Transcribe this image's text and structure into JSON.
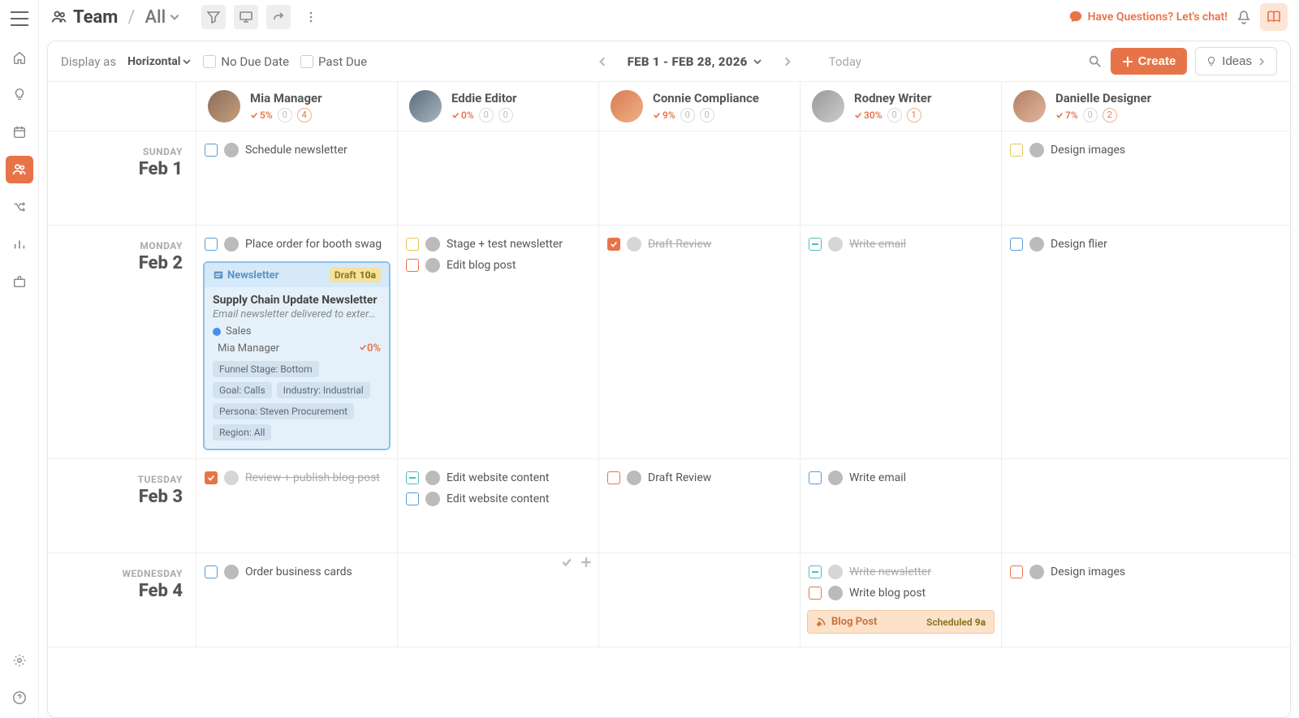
{
  "topbar": {
    "team_label": "Team",
    "view_label": "All",
    "chat_label": "Have Questions? Let's chat!"
  },
  "toolbar": {
    "display_as": "Display as",
    "display_mode": "Horizontal",
    "no_due_date": "No Due Date",
    "past_due": "Past Due",
    "date_range": "FEB 1 - FEB 28, 2026",
    "today": "Today",
    "create_label": "Create",
    "ideas_label": "Ideas"
  },
  "people": [
    {
      "name": "Mia Manager",
      "pct": "5%",
      "c1": "0",
      "c2": "4",
      "c2cls": "orange",
      "avcls": "av-mia"
    },
    {
      "name": "Eddie Editor",
      "pct": "0%",
      "c1": "0",
      "c2": "0",
      "c2cls": "",
      "avcls": "av-eddie"
    },
    {
      "name": "Connie Compliance",
      "pct": "9%",
      "c1": "0",
      "c2": "0",
      "c2cls": "",
      "avcls": "av-connie"
    },
    {
      "name": "Rodney Writer",
      "pct": "30%",
      "c1": "0",
      "c2": "1",
      "c2cls": "orange",
      "avcls": "av-rodney"
    },
    {
      "name": "Danielle Designer",
      "pct": "7%",
      "c1": "0",
      "c2": "2",
      "c2cls": "orange",
      "avcls": "av-dani"
    }
  ],
  "days": [
    {
      "dow": "SUNDAY",
      "date": "Feb 1"
    },
    {
      "dow": "MONDAY",
      "date": "Feb 2"
    },
    {
      "dow": "TUESDAY",
      "date": "Feb 3"
    },
    {
      "dow": "WEDNESDAY",
      "date": "Feb 4"
    }
  ],
  "tasks": {
    "d0": {
      "mia": [
        {
          "color": "blue",
          "txt": "Schedule newsletter"
        }
      ],
      "dani": [
        {
          "color": "yellow",
          "txt": "Design images"
        }
      ]
    },
    "d1": {
      "mia": [
        {
          "color": "blue",
          "txt": "Place order for booth swag"
        }
      ],
      "eddie": [
        {
          "color": "yellow",
          "txt": "Stage + test newsletter"
        },
        {
          "color": "orange",
          "txt": "Edit blog post"
        }
      ],
      "connie": [
        {
          "color": "orange",
          "checked": true,
          "done": true,
          "grey": true,
          "txt": "Draft Review"
        }
      ],
      "rodney": [
        {
          "color": "teal",
          "done": true,
          "grey": true,
          "txt": "Write email"
        }
      ],
      "dani": [
        {
          "color": "blue",
          "txt": "Design flier"
        }
      ]
    },
    "d2": {
      "mia": [
        {
          "color": "orange",
          "checked": true,
          "done": true,
          "grey": true,
          "txt": "Review + publish blog post"
        }
      ],
      "eddie": [
        {
          "color": "teal",
          "txt": "Edit website content"
        },
        {
          "color": "blue",
          "txt": "Edit website content"
        }
      ],
      "connie": [
        {
          "color": "orange",
          "txt": "Draft Review"
        }
      ],
      "rodney": [
        {
          "color": "blue",
          "txt": "Write email"
        }
      ]
    },
    "d3": {
      "mia": [
        {
          "color": "blue",
          "txt": "Order business cards"
        }
      ],
      "rodney": [
        {
          "color": "teal",
          "done": true,
          "grey": true,
          "txt": "Write newsletter"
        },
        {
          "color": "orange",
          "txt": "Write blog post"
        }
      ],
      "dani": [
        {
          "color": "orange",
          "txt": "Design images"
        }
      ]
    }
  },
  "project_card": {
    "type_label": "Newsletter",
    "status": "Draft",
    "time": "10a",
    "title": "Supply Chain Update Newsletter",
    "desc": "Email newsletter delivered to external i…",
    "category": "Sales",
    "owner": "Mia Manager",
    "progress": "0%",
    "tags": [
      "Funnel Stage: Bottom",
      "Goal: Calls",
      "Industry: Industrial",
      "Persona: Steven Procurement",
      "Region: All"
    ]
  },
  "blog_card": {
    "type": "Blog Post",
    "status": "Scheduled",
    "time": "9a"
  },
  "colors": {
    "accent": "#e77448",
    "blue": "#5b9bd5",
    "yellow": "#e6c84f",
    "teal": "#4fbdba",
    "card_bg": "#e4f1fb",
    "card_border": "#8fc0e8",
    "blog_bg": "#fde2cb"
  }
}
